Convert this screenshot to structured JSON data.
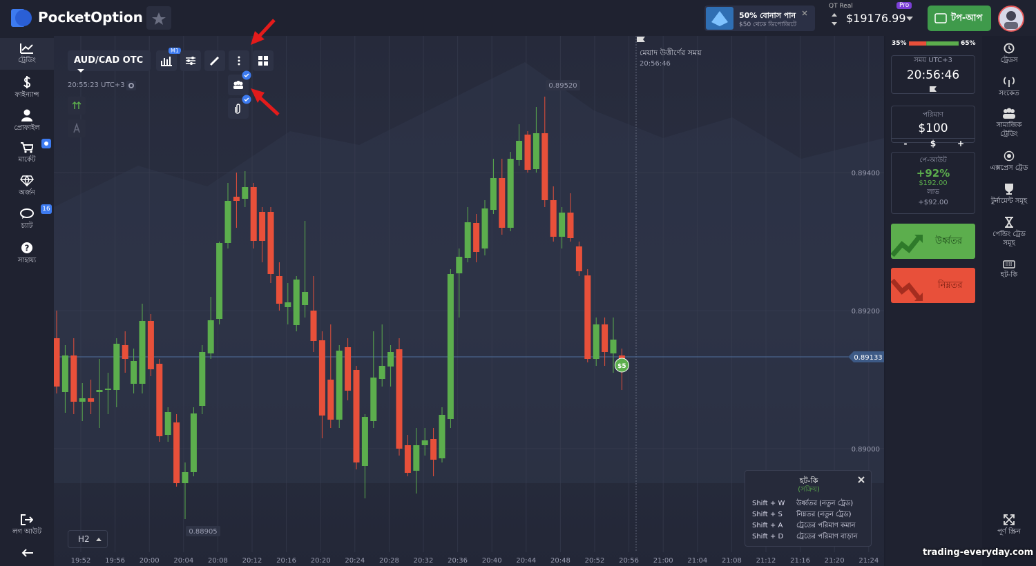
{
  "header": {
    "logo": "PocketOption",
    "bonus_title": "50% বোনাস পান",
    "bonus_sub": "$50 থেকে ডিপোজিটে",
    "account_label": "QT Real",
    "pro": "Pro",
    "balance": "$19176.99",
    "topup": "টপ-আপ"
  },
  "left_nav": {
    "items": [
      "ট্রেডিং",
      "ফাইন্যান্স",
      "প্রোফাইল",
      "মার্কেট",
      "অর্জন",
      "চ্যাট",
      "সাহায্য"
    ],
    "chat_badge": 16,
    "logout": "লগ আউট"
  },
  "toolbar": {
    "asset": "AUD/CAD OTC",
    "timeframe_badge": "M1",
    "server_time": "20:55:23 UTC+3",
    "period": "H2"
  },
  "chart": {
    "type": "candlestick",
    "expiry_label": "মেয়াদ উত্তীর্ণের সময়",
    "expiry_time": "20:56:46",
    "trade_badge": "$5",
    "ylim": [
      0.8885,
      0.89598
    ],
    "price_ticks": [
      {
        "value": 0.894,
        "label": "0.89400"
      },
      {
        "value": 0.892,
        "label": "0.89200"
      },
      {
        "value": 0.89,
        "label": "0.89000"
      }
    ],
    "current_price": {
      "value": 0.89133,
      "label": "0.89133"
    },
    "high_label": {
      "value": 0.8952,
      "label": "0.89520"
    },
    "low_label": {
      "value": 0.88905,
      "label": "0.88905"
    },
    "time_labels": [
      "19:52",
      "19:56",
      "20:00",
      "20:04",
      "20:08",
      "20:12",
      "20:16",
      "20:20",
      "20:24",
      "20:28",
      "20:32",
      "20:36",
      "20:40",
      "20:44",
      "20:48",
      "20:52",
      "20:56",
      "21:00",
      "21:04",
      "21:08",
      "21:12",
      "21:16",
      "21:20",
      "21:24"
    ],
    "candles": [
      [
        0.8916,
        0.892,
        0.8908,
        0.8909
      ],
      [
        0.89082,
        0.8915,
        0.89052,
        0.89135
      ],
      [
        0.89135,
        0.8916,
        0.8905,
        0.89068
      ],
      [
        0.89068,
        0.89095,
        0.8904,
        0.89073
      ],
      [
        0.89073,
        0.891,
        0.8905,
        0.89068
      ],
      [
        0.89082,
        0.8913,
        0.8903,
        0.89085
      ],
      [
        0.89085,
        0.8911,
        0.8905,
        0.89087
      ],
      [
        0.89085,
        0.8916,
        0.8906,
        0.89152
      ],
      [
        0.8915,
        0.8917,
        0.8911,
        0.8913
      ],
      [
        0.89094,
        0.89145,
        0.8908,
        0.89127
      ],
      [
        0.89094,
        0.8921,
        0.8908,
        0.89185
      ],
      [
        0.89185,
        0.89195,
        0.89105,
        0.89115
      ],
      [
        0.89123,
        0.8913,
        0.8901,
        0.89018
      ],
      [
        0.8902,
        0.8906,
        0.8901,
        0.89053
      ],
      [
        0.89038,
        0.8905,
        0.88945,
        0.8895
      ],
      [
        0.8895,
        0.8898,
        0.88898,
        0.88966
      ],
      [
        0.88966,
        0.8906,
        0.8896,
        0.89051
      ],
      [
        0.89062,
        0.8915,
        0.8905,
        0.8914
      ],
      [
        0.89138,
        0.8922,
        0.8913,
        0.89186
      ],
      [
        0.89188,
        0.893,
        0.8918,
        0.89298
      ],
      [
        0.89298,
        0.89385,
        0.8929,
        0.89359
      ],
      [
        0.89365,
        0.894,
        0.8932,
        0.89359
      ],
      [
        0.89362,
        0.89402,
        0.8935,
        0.89379
      ],
      [
        0.89379,
        0.89385,
        0.8929,
        0.89301
      ],
      [
        0.89343,
        0.8935,
        0.8927,
        0.89301
      ],
      [
        0.89343,
        0.8935,
        0.8924,
        0.89253
      ],
      [
        0.8925,
        0.8927,
        0.892,
        0.8921
      ],
      [
        0.89205,
        0.8924,
        0.8918,
        0.89212
      ],
      [
        0.89179,
        0.8925,
        0.8917,
        0.89245
      ],
      [
        0.89208,
        0.8933,
        0.8919,
        0.89227
      ],
      [
        0.892,
        0.8925,
        0.8914,
        0.89156
      ],
      [
        0.89157,
        0.8917,
        0.89015,
        0.89048
      ],
      [
        0.891,
        0.8918,
        0.8903,
        0.89042
      ],
      [
        0.89042,
        0.8915,
        0.8903,
        0.89142
      ],
      [
        0.89147,
        0.8916,
        0.8907,
        0.89084
      ],
      [
        0.89114,
        0.8912,
        0.8897,
        0.8898
      ],
      [
        0.88975,
        0.8905,
        0.88928,
        0.89046
      ],
      [
        0.8904,
        0.8917,
        0.8903,
        0.89103
      ],
      [
        0.89101,
        0.8918,
        0.8909,
        0.8912
      ],
      [
        0.89119,
        0.8915,
        0.8909,
        0.8914
      ],
      [
        0.89144,
        0.8916,
        0.8899,
        0.89
      ],
      [
        0.89005,
        0.8902,
        0.8896,
        0.88965
      ],
      [
        0.88968,
        0.8903,
        0.88935,
        0.89005
      ],
      [
        0.89005,
        0.8903,
        0.8899,
        0.89012
      ],
      [
        0.89014,
        0.8903,
        0.8896,
        0.88984
      ],
      [
        0.88986,
        0.8906,
        0.8898,
        0.89049
      ],
      [
        0.89043,
        0.8926,
        0.8903,
        0.89253
      ],
      [
        0.89254,
        0.8929,
        0.8919,
        0.89278
      ],
      [
        0.89276,
        0.8935,
        0.8927,
        0.89328
      ],
      [
        0.89327,
        0.8934,
        0.8927,
        0.89285
      ],
      [
        0.8929,
        0.8936,
        0.8928,
        0.89348
      ],
      [
        0.89346,
        0.8942,
        0.8934,
        0.89392
      ],
      [
        0.89392,
        0.8942,
        0.8931,
        0.8932
      ],
      [
        0.8932,
        0.8943,
        0.89315,
        0.8942
      ],
      [
        0.89418,
        0.8947,
        0.8941,
        0.89446
      ],
      [
        0.89455,
        0.8946,
        0.894,
        0.89404
      ],
      [
        0.89405,
        0.89495,
        0.894,
        0.89457
      ],
      [
        0.89457,
        0.8951,
        0.8935,
        0.8936
      ],
      [
        0.8936,
        0.8938,
        0.893,
        0.89307
      ],
      [
        0.89307,
        0.8935,
        0.8929,
        0.89342
      ],
      [
        0.89342,
        0.8937,
        0.893,
        0.89305
      ],
      [
        0.89293,
        0.893,
        0.8925,
        0.89257
      ],
      [
        0.89251,
        0.8926,
        0.89125,
        0.8913
      ],
      [
        0.8913,
        0.8919,
        0.8912,
        0.8918
      ],
      [
        0.8918,
        0.8919,
        0.8912,
        0.8914
      ],
      [
        0.89138,
        0.8919,
        0.8911,
        0.89158
      ],
      [
        0.89135,
        0.89145,
        0.89085,
        0.89123
      ]
    ],
    "up_color": "#5cae4d",
    "down_color": "#e8503a"
  },
  "hotkeys": {
    "title": "হট-কি",
    "status": "(সক্রিয়)",
    "rows": [
      [
        "Shift + W",
        "উর্ধ্বতর (নতুন ট্রেড)"
      ],
      [
        "Shift + S",
        "নিম্নতর (নতুন ট্রেড)"
      ],
      [
        "Shift + A",
        "ট্রেডের পরিমাণ কমান"
      ],
      [
        "Shift + D",
        "ট্রেডের পরিমাণ বাড়ান"
      ]
    ]
  },
  "trade_panel": {
    "sentiment_down": {
      "value": 35,
      "label": "35%"
    },
    "sentiment_up": {
      "value": 65,
      "label": "65%"
    },
    "time_label": "সময় UTC+3",
    "time": "20:56:46",
    "amount_label": "পরিমাণ",
    "amount": "$100",
    "minus": "-",
    "currency": "$",
    "plus": "+",
    "payout_label": "পে-আউট",
    "payout": "+92%",
    "payout_amount": "$192.00",
    "profit_label": "লাভ",
    "profit": "+$92.00",
    "up_button": "উর্ধ্বতর",
    "down_button": "নিম্নতর"
  },
  "right_nav": [
    "ট্রেডস",
    "সংকেত",
    "সামাজিক ট্রেডিং",
    "এক্সপ্রেস ট্রেড",
    "টুর্নামেন্ট সমূহ",
    "পেন্ডিং ট্রেড সমূহ",
    "হট-কি",
    "পূর্ণ স্ক্রিন"
  ],
  "watermark": "trading-everyday.com"
}
